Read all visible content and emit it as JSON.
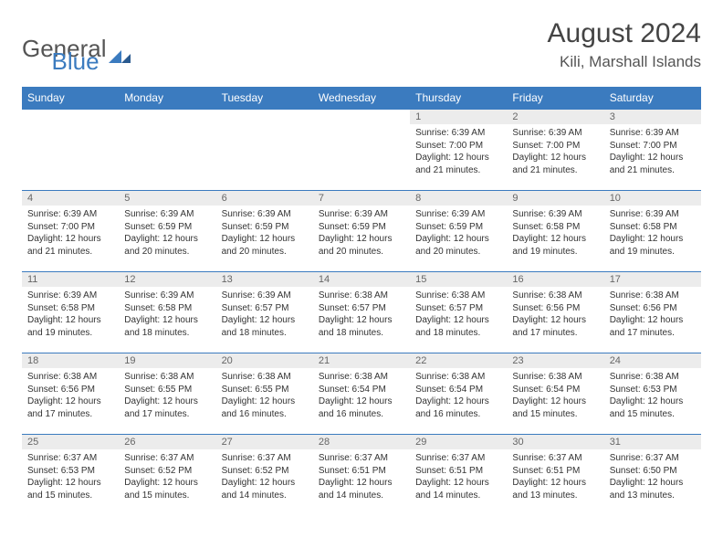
{
  "logo": {
    "text_general": "General",
    "text_blue": "Blue"
  },
  "title": "August 2024",
  "location": "Kili, Marshall Islands",
  "weekdays": [
    "Sunday",
    "Monday",
    "Tuesday",
    "Wednesday",
    "Thursday",
    "Friday",
    "Saturday"
  ],
  "colors": {
    "header_bg": "#3b7bbf",
    "header_text": "#ffffff",
    "daynum_bg": "#ececec",
    "border": "#3b7bbf"
  },
  "weeks": [
    [
      null,
      null,
      null,
      null,
      {
        "n": "1",
        "sr": "Sunrise: 6:39 AM",
        "ss": "Sunset: 7:00 PM",
        "dl1": "Daylight: 12 hours",
        "dl2": "and 21 minutes."
      },
      {
        "n": "2",
        "sr": "Sunrise: 6:39 AM",
        "ss": "Sunset: 7:00 PM",
        "dl1": "Daylight: 12 hours",
        "dl2": "and 21 minutes."
      },
      {
        "n": "3",
        "sr": "Sunrise: 6:39 AM",
        "ss": "Sunset: 7:00 PM",
        "dl1": "Daylight: 12 hours",
        "dl2": "and 21 minutes."
      }
    ],
    [
      {
        "n": "4",
        "sr": "Sunrise: 6:39 AM",
        "ss": "Sunset: 7:00 PM",
        "dl1": "Daylight: 12 hours",
        "dl2": "and 21 minutes."
      },
      {
        "n": "5",
        "sr": "Sunrise: 6:39 AM",
        "ss": "Sunset: 6:59 PM",
        "dl1": "Daylight: 12 hours",
        "dl2": "and 20 minutes."
      },
      {
        "n": "6",
        "sr": "Sunrise: 6:39 AM",
        "ss": "Sunset: 6:59 PM",
        "dl1": "Daylight: 12 hours",
        "dl2": "and 20 minutes."
      },
      {
        "n": "7",
        "sr": "Sunrise: 6:39 AM",
        "ss": "Sunset: 6:59 PM",
        "dl1": "Daylight: 12 hours",
        "dl2": "and 20 minutes."
      },
      {
        "n": "8",
        "sr": "Sunrise: 6:39 AM",
        "ss": "Sunset: 6:59 PM",
        "dl1": "Daylight: 12 hours",
        "dl2": "and 20 minutes."
      },
      {
        "n": "9",
        "sr": "Sunrise: 6:39 AM",
        "ss": "Sunset: 6:58 PM",
        "dl1": "Daylight: 12 hours",
        "dl2": "and 19 minutes."
      },
      {
        "n": "10",
        "sr": "Sunrise: 6:39 AM",
        "ss": "Sunset: 6:58 PM",
        "dl1": "Daylight: 12 hours",
        "dl2": "and 19 minutes."
      }
    ],
    [
      {
        "n": "11",
        "sr": "Sunrise: 6:39 AM",
        "ss": "Sunset: 6:58 PM",
        "dl1": "Daylight: 12 hours",
        "dl2": "and 19 minutes."
      },
      {
        "n": "12",
        "sr": "Sunrise: 6:39 AM",
        "ss": "Sunset: 6:58 PM",
        "dl1": "Daylight: 12 hours",
        "dl2": "and 18 minutes."
      },
      {
        "n": "13",
        "sr": "Sunrise: 6:39 AM",
        "ss": "Sunset: 6:57 PM",
        "dl1": "Daylight: 12 hours",
        "dl2": "and 18 minutes."
      },
      {
        "n": "14",
        "sr": "Sunrise: 6:38 AM",
        "ss": "Sunset: 6:57 PM",
        "dl1": "Daylight: 12 hours",
        "dl2": "and 18 minutes."
      },
      {
        "n": "15",
        "sr": "Sunrise: 6:38 AM",
        "ss": "Sunset: 6:57 PM",
        "dl1": "Daylight: 12 hours",
        "dl2": "and 18 minutes."
      },
      {
        "n": "16",
        "sr": "Sunrise: 6:38 AM",
        "ss": "Sunset: 6:56 PM",
        "dl1": "Daylight: 12 hours",
        "dl2": "and 17 minutes."
      },
      {
        "n": "17",
        "sr": "Sunrise: 6:38 AM",
        "ss": "Sunset: 6:56 PM",
        "dl1": "Daylight: 12 hours",
        "dl2": "and 17 minutes."
      }
    ],
    [
      {
        "n": "18",
        "sr": "Sunrise: 6:38 AM",
        "ss": "Sunset: 6:56 PM",
        "dl1": "Daylight: 12 hours",
        "dl2": "and 17 minutes."
      },
      {
        "n": "19",
        "sr": "Sunrise: 6:38 AM",
        "ss": "Sunset: 6:55 PM",
        "dl1": "Daylight: 12 hours",
        "dl2": "and 17 minutes."
      },
      {
        "n": "20",
        "sr": "Sunrise: 6:38 AM",
        "ss": "Sunset: 6:55 PM",
        "dl1": "Daylight: 12 hours",
        "dl2": "and 16 minutes."
      },
      {
        "n": "21",
        "sr": "Sunrise: 6:38 AM",
        "ss": "Sunset: 6:54 PM",
        "dl1": "Daylight: 12 hours",
        "dl2": "and 16 minutes."
      },
      {
        "n": "22",
        "sr": "Sunrise: 6:38 AM",
        "ss": "Sunset: 6:54 PM",
        "dl1": "Daylight: 12 hours",
        "dl2": "and 16 minutes."
      },
      {
        "n": "23",
        "sr": "Sunrise: 6:38 AM",
        "ss": "Sunset: 6:54 PM",
        "dl1": "Daylight: 12 hours",
        "dl2": "and 15 minutes."
      },
      {
        "n": "24",
        "sr": "Sunrise: 6:38 AM",
        "ss": "Sunset: 6:53 PM",
        "dl1": "Daylight: 12 hours",
        "dl2": "and 15 minutes."
      }
    ],
    [
      {
        "n": "25",
        "sr": "Sunrise: 6:37 AM",
        "ss": "Sunset: 6:53 PM",
        "dl1": "Daylight: 12 hours",
        "dl2": "and 15 minutes."
      },
      {
        "n": "26",
        "sr": "Sunrise: 6:37 AM",
        "ss": "Sunset: 6:52 PM",
        "dl1": "Daylight: 12 hours",
        "dl2": "and 15 minutes."
      },
      {
        "n": "27",
        "sr": "Sunrise: 6:37 AM",
        "ss": "Sunset: 6:52 PM",
        "dl1": "Daylight: 12 hours",
        "dl2": "and 14 minutes."
      },
      {
        "n": "28",
        "sr": "Sunrise: 6:37 AM",
        "ss": "Sunset: 6:51 PM",
        "dl1": "Daylight: 12 hours",
        "dl2": "and 14 minutes."
      },
      {
        "n": "29",
        "sr": "Sunrise: 6:37 AM",
        "ss": "Sunset: 6:51 PM",
        "dl1": "Daylight: 12 hours",
        "dl2": "and 14 minutes."
      },
      {
        "n": "30",
        "sr": "Sunrise: 6:37 AM",
        "ss": "Sunset: 6:51 PM",
        "dl1": "Daylight: 12 hours",
        "dl2": "and 13 minutes."
      },
      {
        "n": "31",
        "sr": "Sunrise: 6:37 AM",
        "ss": "Sunset: 6:50 PM",
        "dl1": "Daylight: 12 hours",
        "dl2": "and 13 minutes."
      }
    ]
  ]
}
